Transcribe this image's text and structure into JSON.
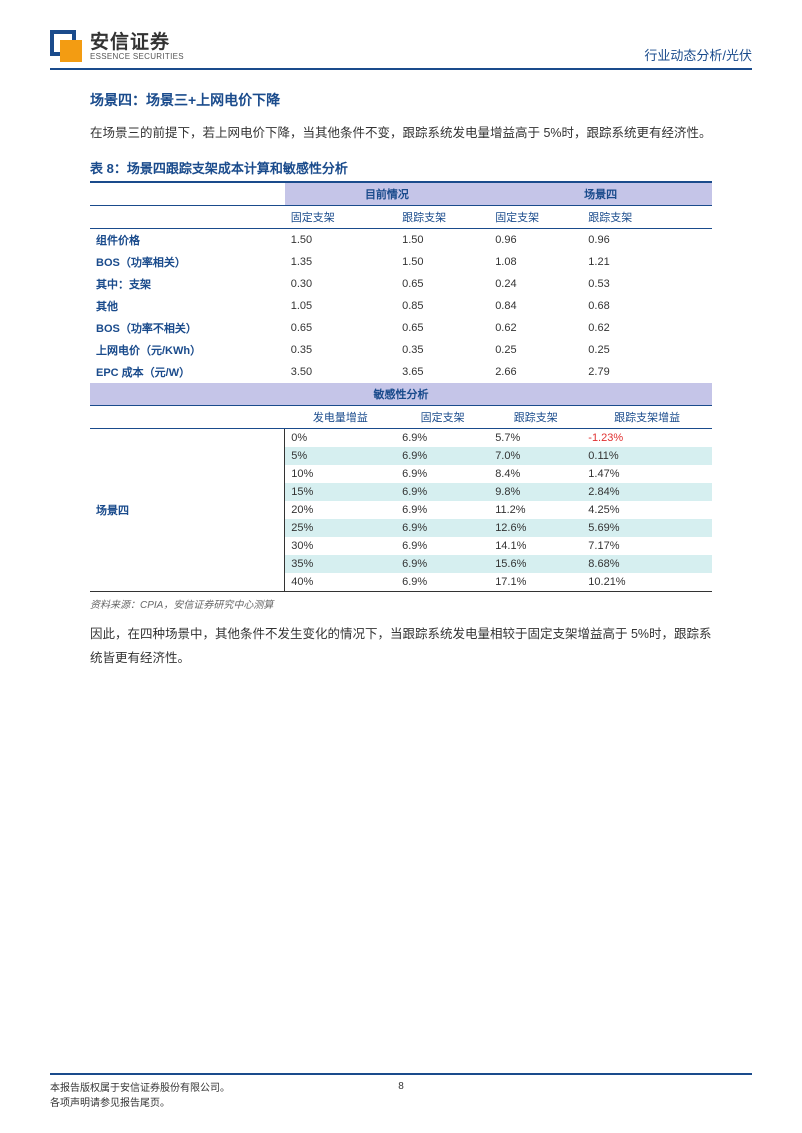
{
  "header": {
    "logo_cn": "安信证券",
    "logo_en": "ESSENCE SECURITIES",
    "right_text": "行业动态分析/光伏"
  },
  "section_title": "场景四：场景三+上网电价下降",
  "paragraph1": "在场景三的前提下，若上网电价下降，当其他条件不变，跟踪系统发电量增益高于 5%时，跟踪系统更有经济性。",
  "table_title": "表 8：场景四跟踪支架成本计算和敏感性分析",
  "cost_table": {
    "group_headers": [
      "",
      "目前情况",
      "场景四"
    ],
    "sub_headers": [
      "",
      "固定支架",
      "跟踪支架",
      "固定支架",
      "跟踪支架"
    ],
    "rows": [
      {
        "label": "组件价格",
        "values": [
          "1.50",
          "1.50",
          "0.96",
          "0.96"
        ]
      },
      {
        "label": "BOS（功率相关）",
        "values": [
          "1.35",
          "1.50",
          "1.08",
          "1.21"
        ]
      },
      {
        "label": "其中：支架",
        "values": [
          "0.30",
          "0.65",
          "0.24",
          "0.53"
        ]
      },
      {
        "label": "其他",
        "values": [
          "1.05",
          "0.85",
          "0.84",
          "0.68"
        ]
      },
      {
        "label": "BOS（功率不相关）",
        "values": [
          "0.65",
          "0.65",
          "0.62",
          "0.62"
        ]
      },
      {
        "label": "上网电价（元/KWh）",
        "values": [
          "0.35",
          "0.35",
          "0.25",
          "0.25"
        ]
      },
      {
        "label": "EPC 成本（元/W）",
        "values": [
          "3.50",
          "3.65",
          "2.66",
          "2.79"
        ]
      }
    ]
  },
  "sens_table": {
    "header": "敏感性分析",
    "sub_headers": [
      "",
      "发电量增益",
      "固定支架",
      "跟踪支架",
      "跟踪支架增益"
    ],
    "row_label": "场景四",
    "rows": [
      {
        "values": [
          "0%",
          "6.9%",
          "5.7%",
          "-1.23%"
        ],
        "stripe": false,
        "last_red": true
      },
      {
        "values": [
          "5%",
          "6.9%",
          "7.0%",
          "0.11%"
        ],
        "stripe": true
      },
      {
        "values": [
          "10%",
          "6.9%",
          "8.4%",
          "1.47%"
        ],
        "stripe": false
      },
      {
        "values": [
          "15%",
          "6.9%",
          "9.8%",
          "2.84%"
        ],
        "stripe": true
      },
      {
        "values": [
          "20%",
          "6.9%",
          "11.2%",
          "4.25%"
        ],
        "stripe": false
      },
      {
        "values": [
          "25%",
          "6.9%",
          "12.6%",
          "5.69%"
        ],
        "stripe": true
      },
      {
        "values": [
          "30%",
          "6.9%",
          "14.1%",
          "7.17%"
        ],
        "stripe": false
      },
      {
        "values": [
          "35%",
          "6.9%",
          "15.6%",
          "8.68%"
        ],
        "stripe": true
      },
      {
        "values": [
          "40%",
          "6.9%",
          "17.1%",
          "10.21%"
        ],
        "stripe": false
      }
    ]
  },
  "source": "资料来源：CPIA，安信证券研究中心测算",
  "paragraph2": "因此，在四种场景中，其他条件不发生变化的情况下，当跟踪系统发电量相较于固定支架增益高于 5%时，跟踪系统皆更有经济性。",
  "footer": {
    "line1": "本报告版权属于安信证券股份有限公司。",
    "line2": "各项声明请参见报告尾页。",
    "page_number": "8"
  },
  "colors": {
    "brand_blue": "#1a4b8c",
    "header_purple": "#c5c5e8",
    "stripe_teal": "#d6eff0",
    "red": "#e03030",
    "logo_orange": "#f39c12"
  }
}
